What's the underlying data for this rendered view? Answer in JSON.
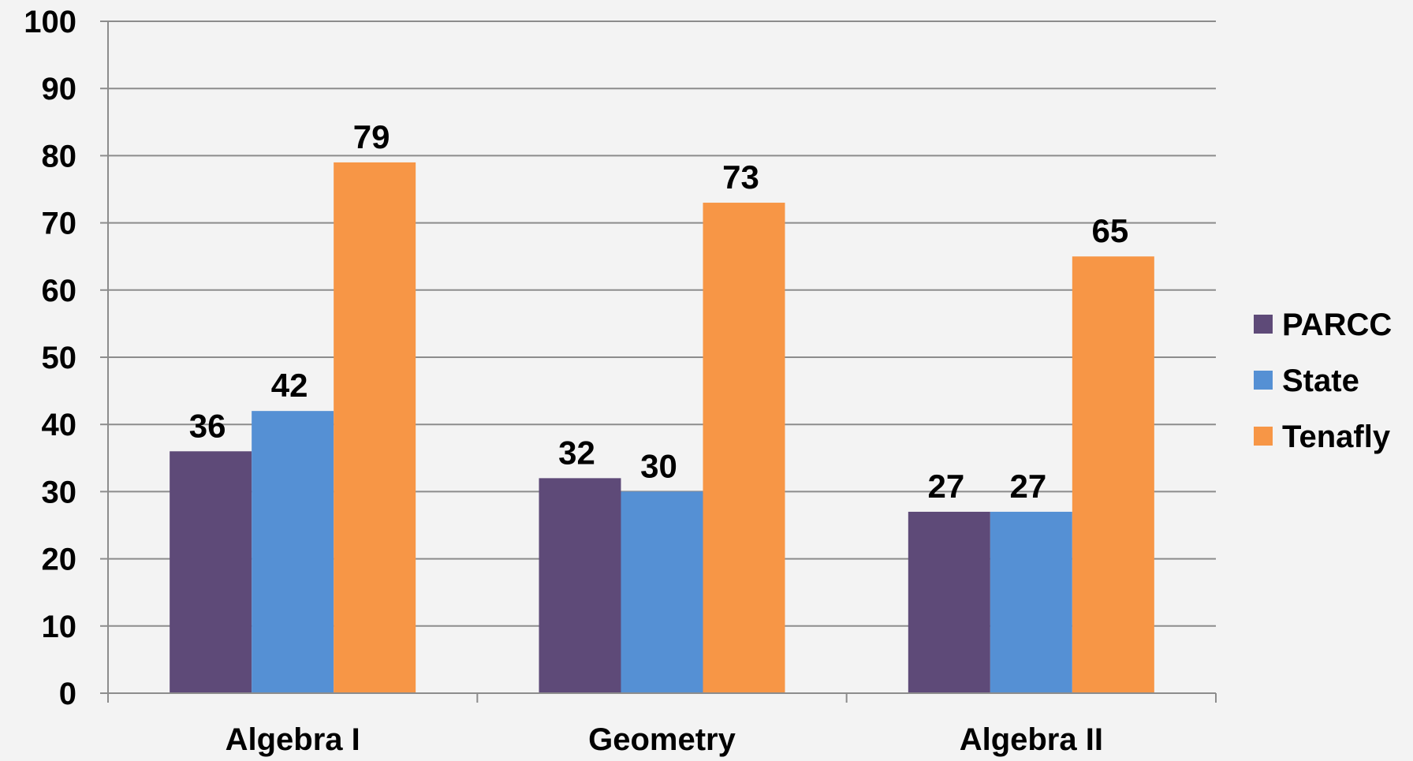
{
  "chart_data": {
    "type": "bar",
    "title": "",
    "xlabel": "",
    "ylabel": "",
    "categories": [
      "Algebra I",
      "Geometry",
      "Algebra II"
    ],
    "series": [
      {
        "name": "PARCC",
        "values": [
          36,
          32,
          27
        ]
      },
      {
        "name": "State",
        "values": [
          42,
          30,
          27
        ]
      },
      {
        "name": "Tenafly",
        "values": [
          79,
          73,
          65
        ]
      }
    ],
    "ylim": [
      0,
      100
    ],
    "yticks": [
      0,
      10,
      20,
      30,
      40,
      50,
      60,
      70,
      80,
      90,
      100
    ],
    "grid": true,
    "legend_position": "right",
    "data_labels": true
  },
  "colors": {
    "background": "#f3f3f3",
    "gridline": "#8c8c8c",
    "axis": "#8c8c8c",
    "series": [
      "#5e4a78",
      "#5590d4",
      "#f79646"
    ]
  }
}
